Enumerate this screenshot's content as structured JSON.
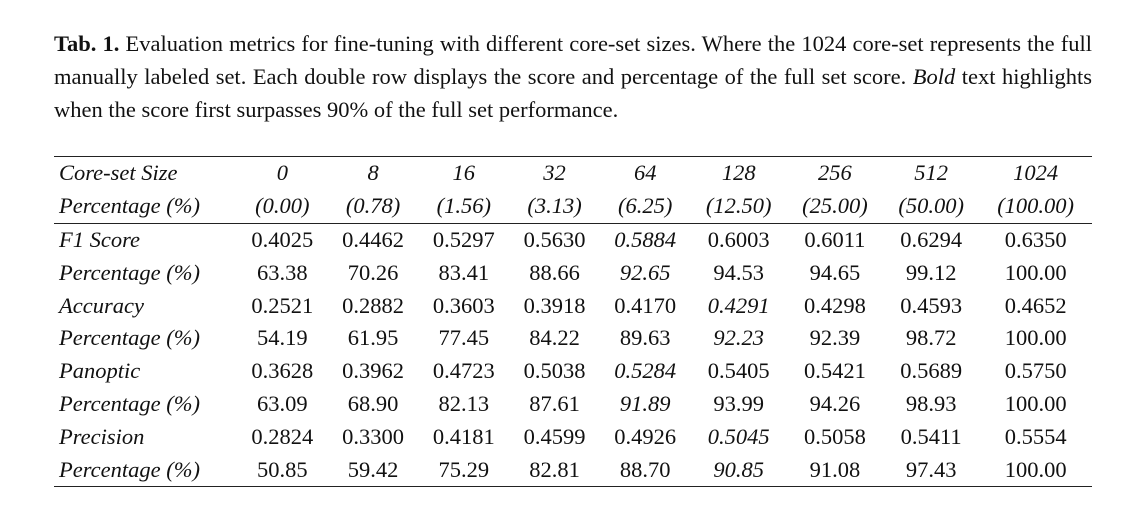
{
  "caption": {
    "label": "Tab. 1.",
    "text": " Evaluation metrics for fine-tuning with different core-set sizes. Where the 1024 core-set represents the full manually labeled set. Each double row displays the score and percentage of the full set score. ",
    "emphasis": "Bold",
    "text_end": " text highlights when the score first surpasses 90% of the full set performance."
  },
  "table": {
    "header": [
      [
        "Core-set Size",
        "0",
        "8",
        "16",
        "32",
        "64",
        "128",
        "256",
        "512",
        "1024"
      ],
      [
        "Percentage (%)",
        "(0.00)",
        "(0.78)",
        "(1.56)",
        "(3.13)",
        "(6.25)",
        "(12.50)",
        "(25.00)",
        "(50.00)",
        "(100.00)"
      ]
    ],
    "rows": [
      [
        "F1 Score",
        "0.4025",
        "0.4462",
        "0.5297",
        "0.5630",
        "0.5884",
        "0.6003",
        "0.6011",
        "0.6294",
        "0.6350"
      ],
      [
        "Percentage (%)",
        "63.38",
        "70.26",
        "83.41",
        "88.66",
        "92.65",
        "94.53",
        "94.65",
        "99.12",
        "100.00"
      ],
      [
        "Accuracy",
        "0.2521",
        "0.2882",
        "0.3603",
        "0.3918",
        "0.4170",
        "0.4291",
        "0.4298",
        "0.4593",
        "0.4652"
      ],
      [
        "Percentage (%)",
        "54.19",
        "61.95",
        "77.45",
        "84.22",
        "89.63",
        "92.23",
        "92.39",
        "98.72",
        "100.00"
      ],
      [
        "Panoptic",
        "0.3628",
        "0.3962",
        "0.4723",
        "0.5038",
        "0.5284",
        "0.5405",
        "0.5421",
        "0.5689",
        "0.5750"
      ],
      [
        "Percentage (%)",
        "63.09",
        "68.90",
        "82.13",
        "87.61",
        "91.89",
        "93.99",
        "94.26",
        "98.93",
        "100.00"
      ],
      [
        "Precision",
        "0.2824",
        "0.3300",
        "0.4181",
        "0.4599",
        "0.4926",
        "0.5045",
        "0.5058",
        "0.5411",
        "0.5554"
      ],
      [
        "Percentage (%)",
        "50.85",
        "59.42",
        "75.29",
        "82.81",
        "88.70",
        "90.85",
        "91.08",
        "97.43",
        "100.00"
      ]
    ]
  }
}
